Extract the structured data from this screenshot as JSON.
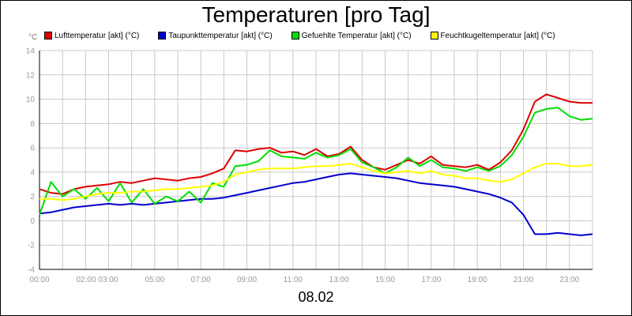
{
  "chart_data": {
    "type": "line",
    "title": "Temperaturen [pro Tag]",
    "subtitle": "08.02",
    "y_unit": "°C",
    "ylim": [
      -4,
      14
    ],
    "y_ticks": [
      14,
      12,
      10,
      8,
      6,
      4,
      2,
      0,
      -2,
      -4
    ],
    "xlim": [
      0,
      24
    ],
    "x_ticks": [
      {
        "x": 0,
        "label": "00:00"
      },
      {
        "x": 2.5,
        "label": "02:00 03:00"
      },
      {
        "x": 5,
        "label": "05:00"
      },
      {
        "x": 7,
        "label": "07:00"
      },
      {
        "x": 9,
        "label": "09:00"
      },
      {
        "x": 11,
        "label": "11:00"
      },
      {
        "x": 13,
        "label": "13:00"
      },
      {
        "x": 15,
        "label": "15:00"
      },
      {
        "x": 17,
        "label": "17:00"
      },
      {
        "x": 19,
        "label": "19:00"
      },
      {
        "x": 21,
        "label": "21:00"
      },
      {
        "x": 23,
        "label": "23:00"
      }
    ],
    "grid": true,
    "legend_position": "top",
    "x": [
      0,
      0.5,
      1,
      1.5,
      2,
      2.5,
      3,
      3.5,
      4,
      4.5,
      5,
      5.5,
      6,
      6.5,
      7,
      7.5,
      8,
      8.5,
      9,
      9.5,
      10,
      10.5,
      11,
      11.5,
      12,
      12.5,
      13,
      13.5,
      14,
      14.5,
      15,
      15.5,
      16,
      16.5,
      17,
      17.5,
      18,
      18.5,
      19,
      19.5,
      20,
      20.5,
      21,
      21.5,
      22,
      22.5,
      23,
      23.5,
      24
    ],
    "series": [
      {
        "name": "Lufttemperatur [akt] (°C)",
        "color": "#dd0000",
        "values": [
          2.6,
          2.3,
          2.2,
          2.6,
          2.8,
          2.9,
          3.0,
          3.2,
          3.1,
          3.3,
          3.5,
          3.4,
          3.3,
          3.5,
          3.6,
          3.9,
          4.3,
          5.8,
          5.7,
          5.9,
          6.0,
          5.6,
          5.7,
          5.4,
          5.9,
          5.3,
          5.5,
          6.1,
          5.0,
          4.4,
          4.2,
          4.6,
          5.0,
          4.7,
          5.3,
          4.6,
          4.5,
          4.4,
          4.6,
          4.2,
          4.8,
          5.8,
          7.5,
          9.8,
          10.4,
          10.1,
          9.8,
          9.7,
          9.7
        ]
      },
      {
        "name": "Taupunkttemperatur [akt] (°C)",
        "color": "#0000cc",
        "values": [
          0.6,
          0.7,
          0.9,
          1.1,
          1.2,
          1.3,
          1.4,
          1.3,
          1.4,
          1.3,
          1.4,
          1.5,
          1.6,
          1.7,
          1.8,
          1.8,
          1.9,
          2.1,
          2.3,
          2.5,
          2.7,
          2.9,
          3.1,
          3.2,
          3.4,
          3.6,
          3.8,
          3.9,
          3.8,
          3.7,
          3.6,
          3.5,
          3.3,
          3.1,
          3.0,
          2.9,
          2.8,
          2.6,
          2.4,
          2.2,
          1.9,
          1.5,
          0.5,
          -1.1,
          -1.1,
          -1.0,
          -1.1,
          -1.2,
          -1.1
        ]
      },
      {
        "name": "Gefuehlte Temperatur [akt] (°C)",
        "color": "#00dd00",
        "values": [
          0.5,
          3.2,
          2.0,
          2.6,
          1.8,
          2.7,
          1.6,
          3.1,
          1.5,
          2.6,
          1.4,
          2.0,
          1.6,
          2.4,
          1.5,
          3.1,
          2.8,
          4.5,
          4.6,
          4.9,
          5.8,
          5.3,
          5.2,
          5.1,
          5.6,
          5.2,
          5.4,
          5.9,
          4.8,
          4.4,
          3.9,
          4.4,
          5.2,
          4.5,
          5.0,
          4.4,
          4.3,
          4.1,
          4.4,
          4.1,
          4.5,
          5.4,
          6.9,
          8.9,
          9.2,
          9.3,
          8.6,
          8.3,
          8.4
        ]
      },
      {
        "name": "Feuchtkugeltemperatur [akt] (°C)",
        "color": "#ffff00",
        "values": [
          1.8,
          1.8,
          1.7,
          1.8,
          2.0,
          2.2,
          2.3,
          2.3,
          2.4,
          2.4,
          2.5,
          2.6,
          2.6,
          2.7,
          2.8,
          2.9,
          3.2,
          3.8,
          4.0,
          4.2,
          4.3,
          4.3,
          4.3,
          4.4,
          4.5,
          4.5,
          4.6,
          4.7,
          4.4,
          4.1,
          3.9,
          4.0,
          4.1,
          3.9,
          4.1,
          3.8,
          3.7,
          3.5,
          3.5,
          3.3,
          3.2,
          3.4,
          3.9,
          4.4,
          4.7,
          4.7,
          4.5,
          4.5,
          4.6
        ]
      }
    ]
  }
}
